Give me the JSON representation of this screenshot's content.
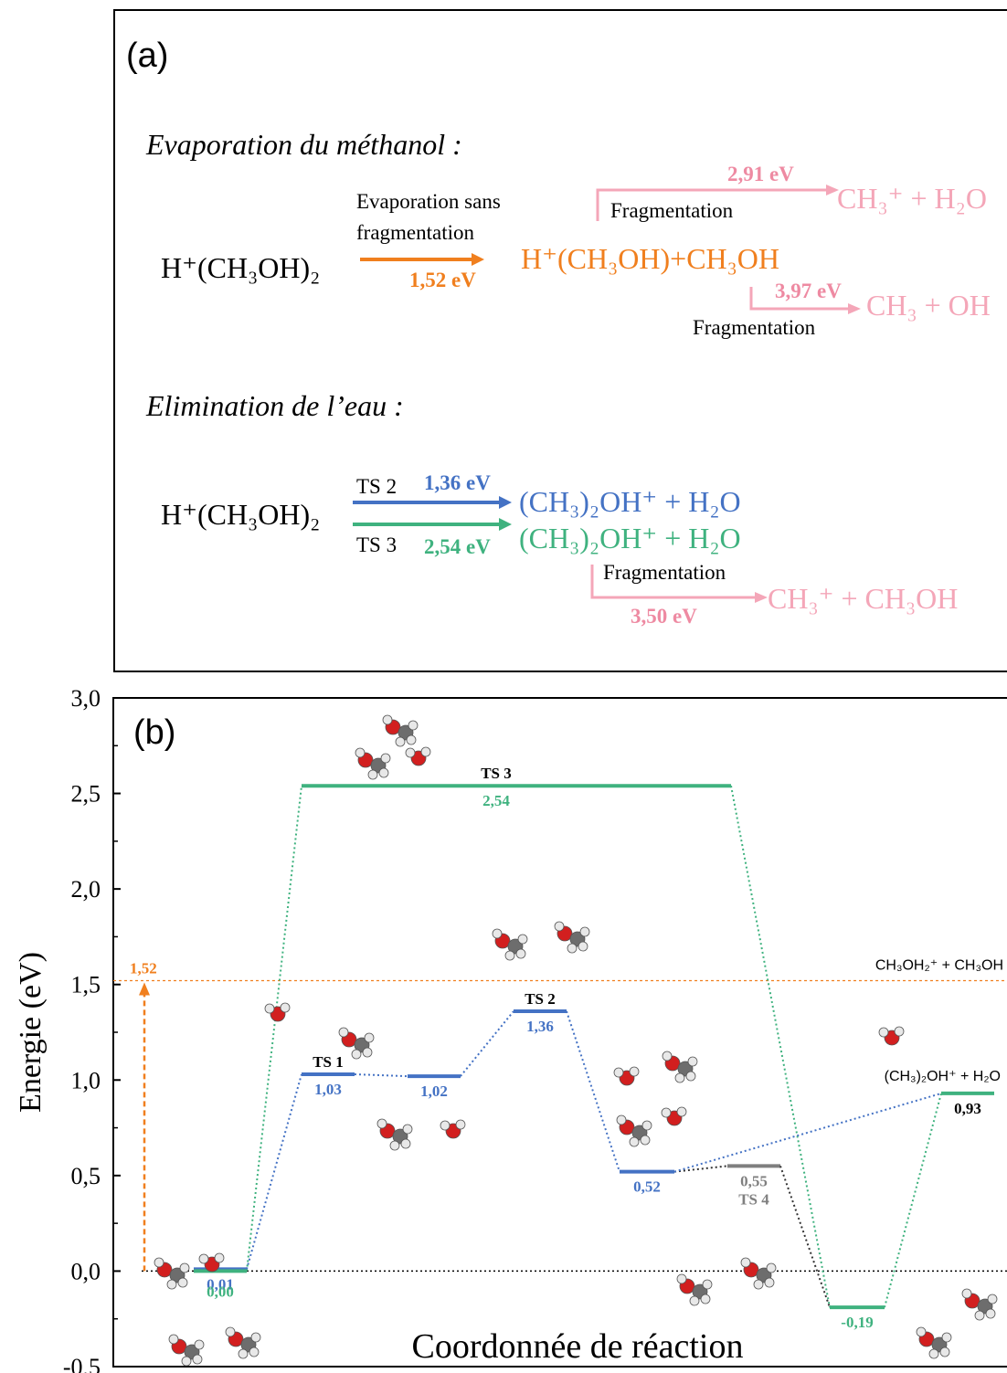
{
  "panel_a": {
    "label": "(a)",
    "evap_title": "Evaporation du méthanol :",
    "reactant": "H⁺(CH₃OH)₂",
    "evap_arrow_top": "Evaporation sans",
    "evap_arrow_top2": "fragmentation",
    "evap_energy": "1,52 eV",
    "evap_product": "H⁺(CH₃OH)+CH₃OH",
    "frag1_energy": "2,91 eV",
    "frag1_label": "Fragmentation",
    "frag1_product": "CH₃⁺ + H₂O",
    "frag2_energy": "3,97 eV",
    "frag2_label": "Fragmentation",
    "frag2_product": "CH₃ + OH",
    "elim_title": "Elimination de l’eau :",
    "elim_reactant": "H⁺(CH₃OH)₂",
    "ts2_label": "TS 2",
    "ts2_energy": "1,36 eV",
    "ts2_product": "(CH₃)₂OH⁺ + H₂O",
    "ts3_label": "TS 3",
    "ts3_energy": "2,54 eV",
    "ts3_product": "(CH₃)₂OH⁺ + H₂O",
    "frag3_label": "Fragmentation",
    "frag3_energy": "3,50 eV",
    "frag3_product": "CH₃⁺ + CH₃OH"
  },
  "chart_data": {
    "type": "energy-level-diagram",
    "label": "(b)",
    "xlabel": "Coordonnée de réaction",
    "ylabel": "Energie (eV)",
    "ylim": [
      -0.5,
      3.0
    ],
    "yticks": [
      "3,0",
      "2,5",
      "2,0",
      "1,5",
      "1,0",
      "0,5",
      "0,0",
      "-0,5"
    ],
    "ytick_values": [
      3.0,
      2.5,
      2.0,
      1.5,
      1.0,
      0.5,
      0.0,
      -0.5
    ],
    "colors": {
      "blue": "#4472c4",
      "green": "#3fb27f",
      "gray": "#7f7f7f",
      "orange": "#f07f1e"
    },
    "evaporation_line": {
      "value": 1.52,
      "label": "1,52",
      "product_label": "CH₃OH₂⁺ + CH₃OH"
    },
    "blue_path": [
      {
        "value": 0.01,
        "label": "0,01",
        "name": ""
      },
      {
        "value": 1.03,
        "label": "1,03",
        "name": "TS 1"
      },
      {
        "value": 1.02,
        "label": "1,02",
        "name": ""
      },
      {
        "value": 1.36,
        "label": "1,36",
        "name": "TS 2"
      },
      {
        "value": 0.52,
        "label": "0,52",
        "name": ""
      }
    ],
    "green_path": [
      {
        "value": 0.0,
        "label": "0,00",
        "name": ""
      },
      {
        "value": 2.54,
        "label": "2,54",
        "name": "TS 3"
      },
      {
        "value": -0.19,
        "label": "-0,19",
        "name": ""
      },
      {
        "value": 0.93,
        "label": "0,93",
        "name": ""
      }
    ],
    "gray_path": [
      {
        "value": 0.55,
        "label": "0,55",
        "name": "TS 4"
      }
    ],
    "final_product_label": "(CH₃)₂OH⁺ + H₂O"
  }
}
